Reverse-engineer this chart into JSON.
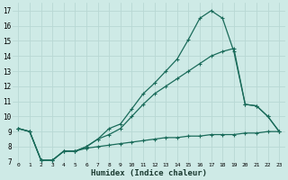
{
  "xlabel": "Humidex (Indice chaleur)",
  "ylabel": "",
  "bg_color": "#ceeae6",
  "grid_color": "#b8d8d4",
  "line_color": "#1a6b5a",
  "xlim": [
    -0.5,
    23.5
  ],
  "ylim": [
    7,
    17.5
  ],
  "xticks": [
    0,
    1,
    2,
    3,
    4,
    5,
    6,
    7,
    8,
    9,
    10,
    11,
    12,
    13,
    14,
    15,
    16,
    17,
    18,
    19,
    20,
    21,
    22,
    23
  ],
  "yticks": [
    7,
    8,
    9,
    10,
    11,
    12,
    13,
    14,
    15,
    16,
    17
  ],
  "line1_x": [
    0,
    1,
    2,
    3,
    4,
    5,
    6,
    7,
    8,
    9,
    10,
    11,
    12,
    13,
    14,
    15,
    16,
    17,
    18,
    19,
    20,
    21,
    22,
    23
  ],
  "line1_y": [
    9.2,
    9.0,
    7.1,
    7.1,
    7.7,
    7.7,
    8.0,
    8.5,
    8.8,
    9.2,
    10.0,
    10.8,
    11.5,
    12.0,
    12.5,
    13.0,
    13.5,
    14.0,
    14.3,
    14.5,
    10.8,
    10.7,
    10.0,
    9.0
  ],
  "line2_x": [
    0,
    1,
    2,
    3,
    4,
    5,
    6,
    7,
    8,
    9,
    10,
    11,
    12,
    13,
    14,
    15,
    16,
    17,
    18,
    19,
    20,
    21,
    22,
    23
  ],
  "line2_y": [
    9.2,
    9.0,
    7.1,
    7.1,
    7.7,
    7.7,
    8.0,
    8.5,
    9.2,
    9.5,
    10.5,
    11.5,
    12.2,
    13.0,
    13.8,
    15.1,
    16.5,
    17.0,
    16.5,
    14.3,
    10.8,
    10.7,
    10.0,
    9.0
  ],
  "line3_x": [
    0,
    1,
    2,
    3,
    4,
    5,
    6,
    7,
    8,
    9,
    10,
    11,
    12,
    13,
    14,
    15,
    16,
    17,
    18,
    19,
    20,
    21,
    22,
    23
  ],
  "line3_y": [
    9.2,
    9.0,
    7.1,
    7.1,
    7.7,
    7.7,
    7.9,
    8.0,
    8.1,
    8.2,
    8.3,
    8.4,
    8.5,
    8.6,
    8.6,
    8.7,
    8.7,
    8.8,
    8.8,
    8.8,
    8.9,
    8.9,
    9.0,
    9.0
  ]
}
